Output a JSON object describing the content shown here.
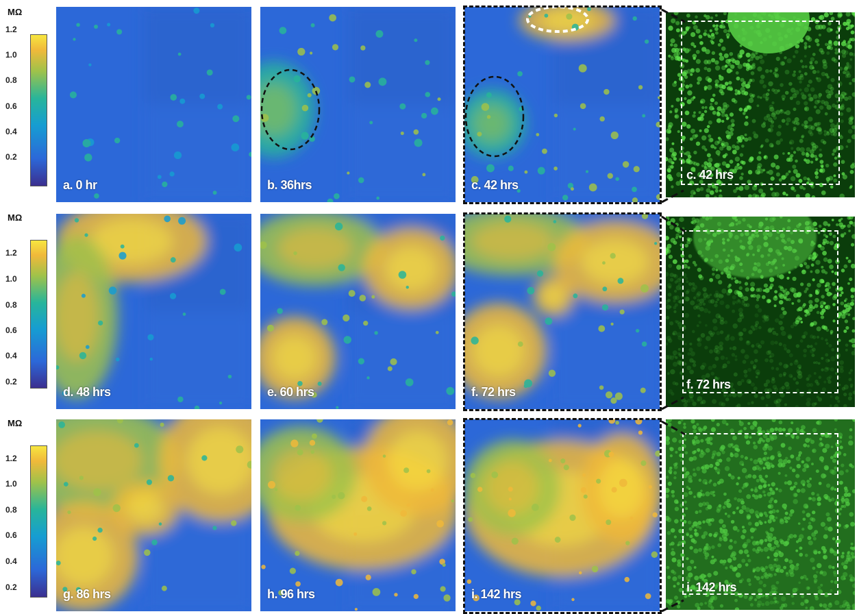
{
  "colorbar": {
    "unit": "MΩ",
    "ticks": [
      "1.2",
      "1.0",
      "0.8",
      "0.6",
      "0.4",
      "0.2"
    ]
  },
  "colormap": [
    "#3b2f8f",
    "#2c68d8",
    "#169dd2",
    "#28b59a",
    "#9fc24a",
    "#f0b93a",
    "#f7e640"
  ],
  "panels": {
    "a": {
      "label": "a. 0 hr"
    },
    "b": {
      "label": "b. 36hrs"
    },
    "c": {
      "label": "c. 42 hrs"
    },
    "c2": {
      "label": "c. 42 hrs"
    },
    "d": {
      "label": "d. 48 hrs"
    },
    "e": {
      "label": "e.  60 hrs"
    },
    "f": {
      "label": "f. 72 hrs"
    },
    "f2": {
      "label": "f. 72 hrs"
    },
    "g": {
      "label": "g. 86 hrs"
    },
    "h": {
      "label": "h. 96 hrs"
    },
    "i": {
      "label": "i. 142 hrs"
    },
    "i2": {
      "label": "i. 142 hrs"
    }
  }
}
